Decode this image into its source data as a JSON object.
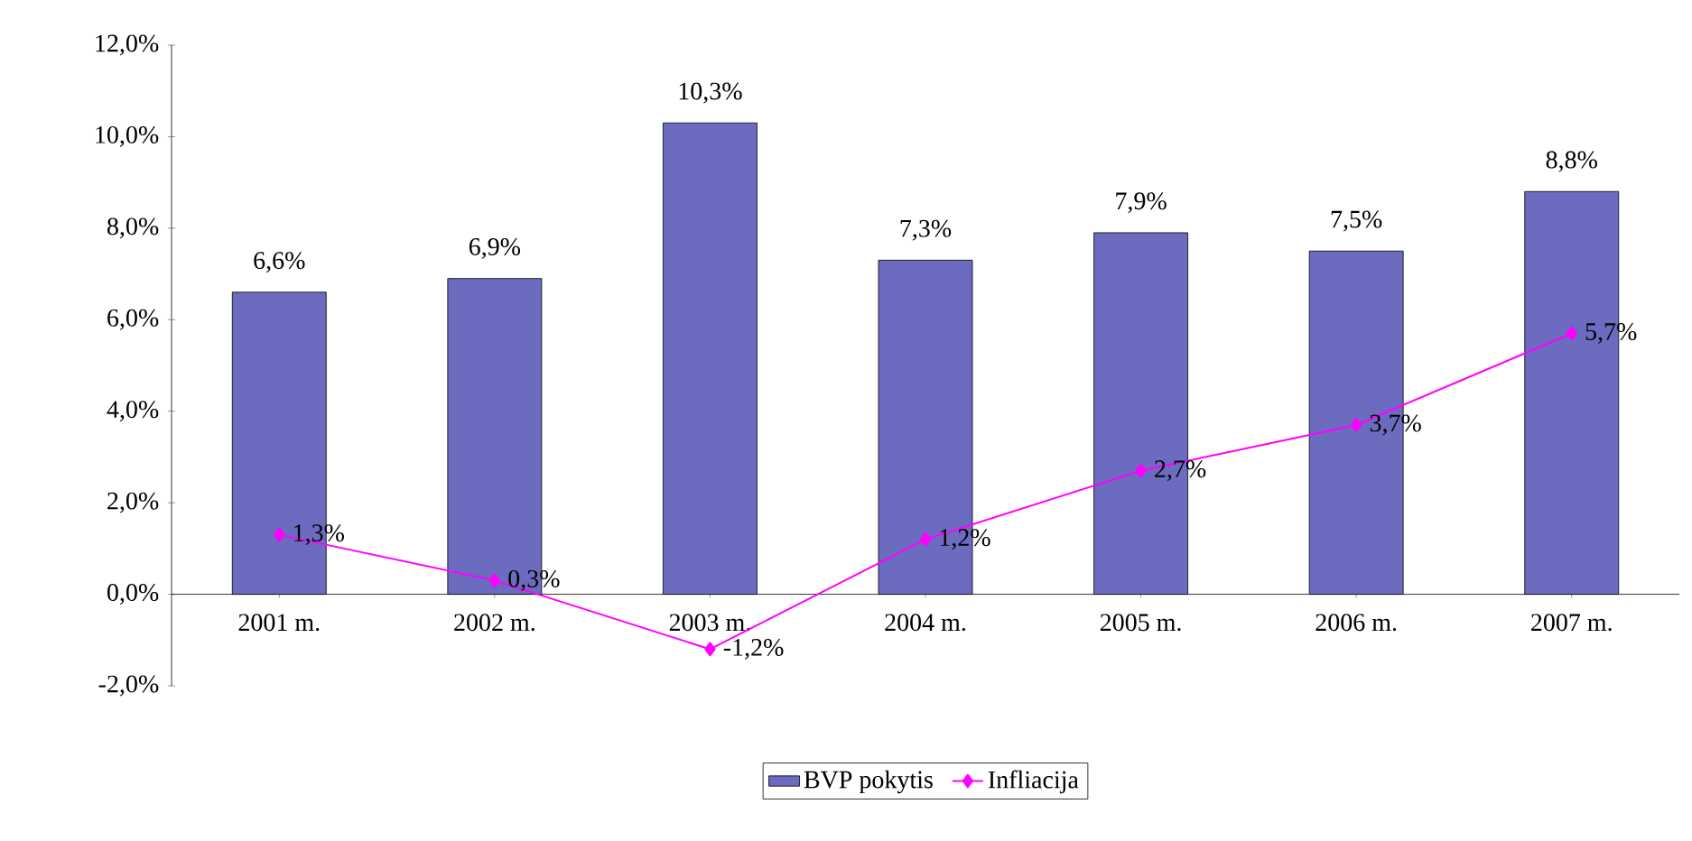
{
  "chart_data": {
    "type": "bar",
    "categories": [
      "2001 m.",
      "2002 m.",
      "2003 m.",
      "2004 m.",
      "2005 m.",
      "2006 m.",
      "2007 m."
    ],
    "series": [
      {
        "name": "BVP pokytis",
        "color": "#6b6bbf",
        "values": [
          6.6,
          6.9,
          10.3,
          7.3,
          7.9,
          7.5,
          8.8
        ],
        "value_labels": [
          "6,6%",
          "6,9%",
          "10,3%",
          "7,3%",
          "7,9%",
          "7,5%",
          "8,8%"
        ]
      },
      {
        "name": "Infliacija",
        "type": "line",
        "color": "#ff00ff",
        "marker": "diamond",
        "values": [
          1.3,
          0.3,
          -1.2,
          1.2,
          2.7,
          3.7,
          5.7
        ],
        "value_labels": [
          "1,3%",
          "0,3%",
          "-1,2%",
          "1,2%",
          "2,7%",
          "3,7%",
          "5,7%"
        ]
      }
    ],
    "ylim": [
      -2,
      12
    ],
    "yticks": [
      {
        "value": -2,
        "label": "-2,0%"
      },
      {
        "value": 0,
        "label": "0,0%"
      },
      {
        "value": 2,
        "label": "2,0%"
      },
      {
        "value": 4,
        "label": "4,0%"
      },
      {
        "value": 6,
        "label": "6,0%"
      },
      {
        "value": 8,
        "label": "8,0%"
      },
      {
        "value": 10,
        "label": "10,0%"
      },
      {
        "value": 12,
        "label": "12,0%"
      }
    ],
    "legend": "bottom"
  }
}
